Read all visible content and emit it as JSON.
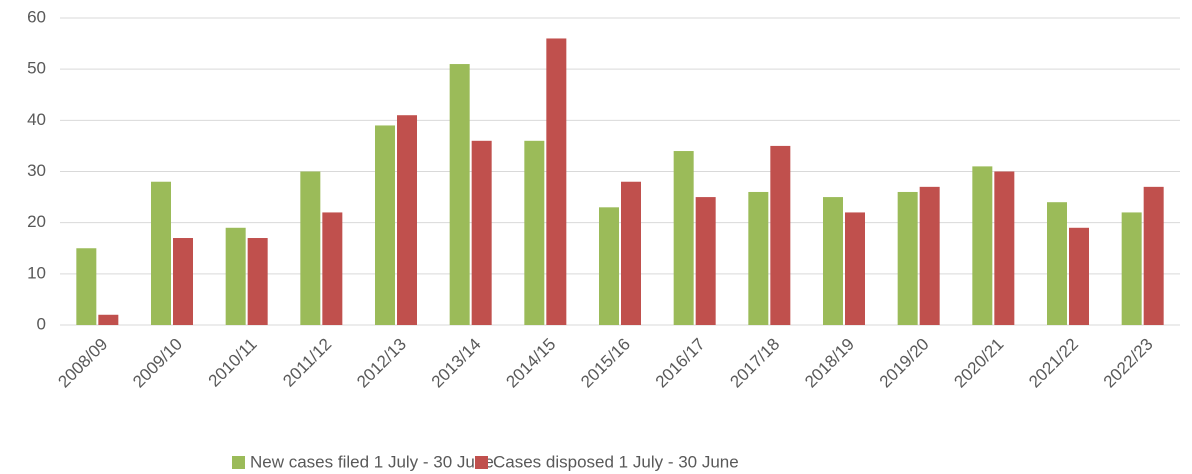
{
  "chart_data": {
    "type": "bar",
    "categories": [
      "2008/09",
      "2009/10",
      "2010/11",
      "2011/12",
      "2012/13",
      "2013/14",
      "2014/15",
      "2015/16",
      "2016/17",
      "2017/18",
      "2018/19",
      "2019/20",
      "2020/21",
      "2021/22",
      "2022/23"
    ],
    "series": [
      {
        "name": "New cases filed 1 July - 30 June",
        "color": "#9bbb59",
        "values": [
          15,
          28,
          19,
          30,
          39,
          51,
          36,
          23,
          34,
          26,
          25,
          26,
          31,
          24,
          22
        ]
      },
      {
        "name": "Cases disposed 1 July - 30 June",
        "color": "#c0504d",
        "values": [
          2,
          17,
          17,
          22,
          41,
          36,
          56,
          28,
          25,
          35,
          22,
          27,
          30,
          19,
          27
        ]
      }
    ],
    "ylim": [
      0,
      60
    ],
    "yticks": [
      0,
      10,
      20,
      30,
      40,
      50,
      60
    ],
    "grid": true,
    "legend": "bottom"
  }
}
